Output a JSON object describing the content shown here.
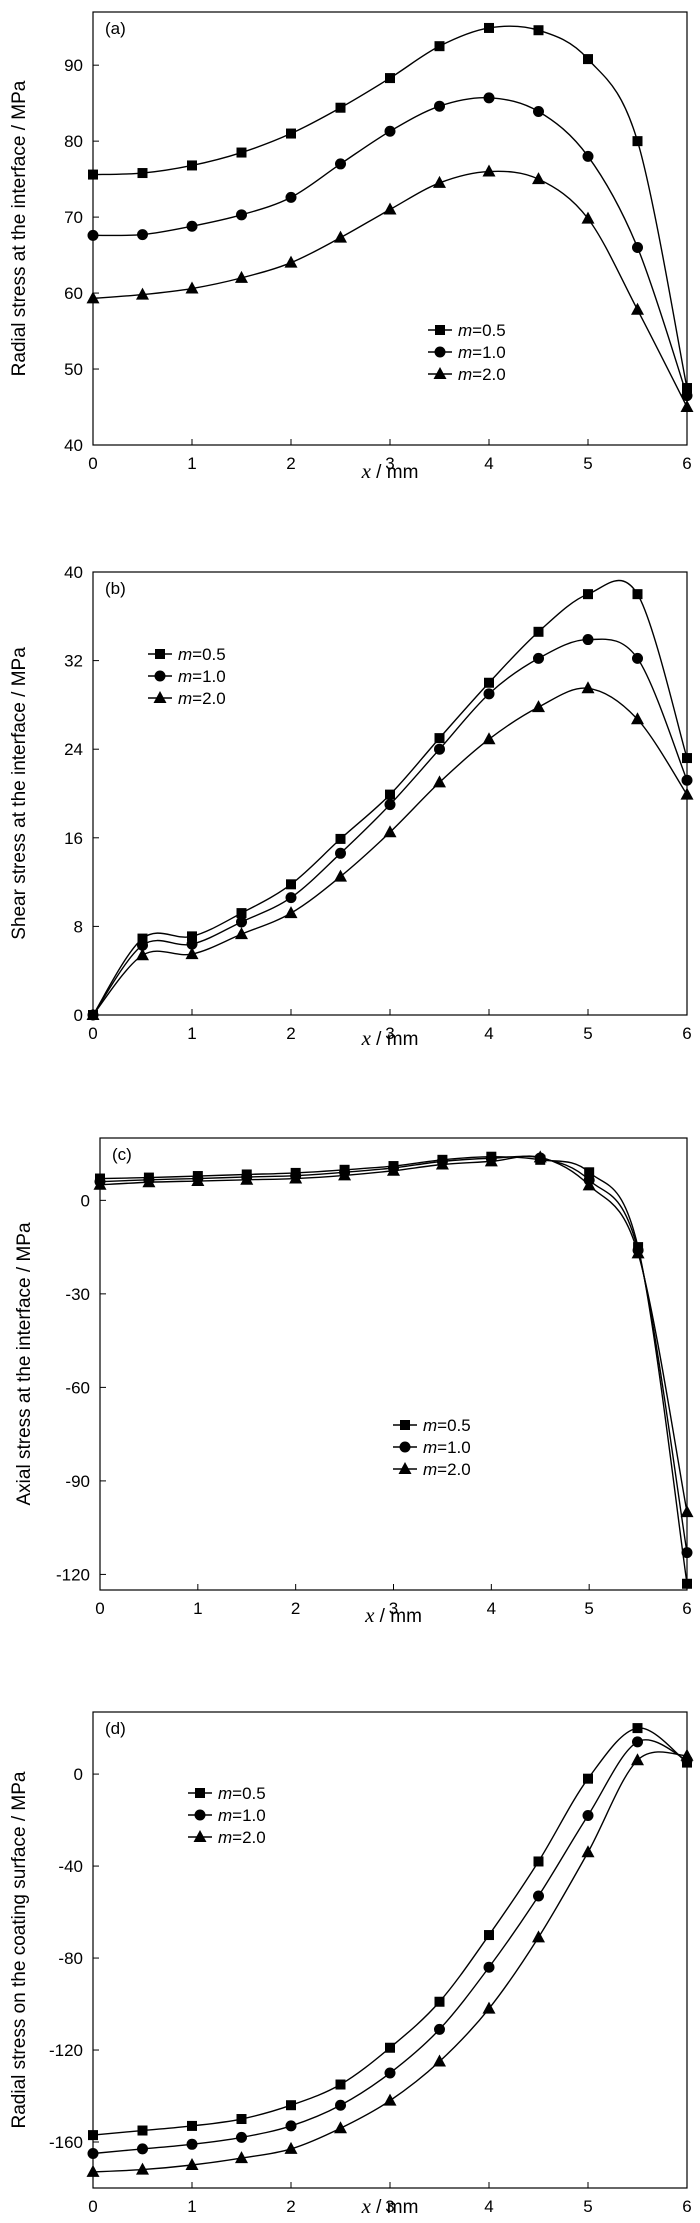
{
  "chart_data": [
    {
      "type": "line",
      "panel_label": "(a)",
      "xlabel_var": "x",
      "xlabel_unit": " / mm",
      "ylabel": "Radial stress at the interface / MPa",
      "xlim": [
        0,
        6
      ],
      "ylim": [
        40,
        97
      ],
      "xticks": [
        0,
        1,
        2,
        3,
        4,
        5,
        6
      ],
      "yticks": [
        40,
        50,
        60,
        70,
        80,
        90
      ],
      "legend_position": "lower-right",
      "x": [
        0,
        0.5,
        1,
        1.5,
        2,
        2.5,
        3,
        3.5,
        4,
        4.5,
        5,
        5.5,
        6
      ],
      "series": [
        {
          "name_var": "m",
          "name_val": "=0.5",
          "marker": "square",
          "values": [
            75.6,
            75.8,
            76.8,
            78.5,
            81.0,
            84.4,
            88.3,
            92.5,
            94.9,
            94.6,
            90.8,
            80.0,
            47.5
          ]
        },
        {
          "name_var": "m",
          "name_val": "=1.0",
          "marker": "circle",
          "values": [
            67.6,
            67.7,
            68.8,
            70.3,
            72.6,
            77.0,
            81.3,
            84.6,
            85.7,
            83.9,
            78.0,
            66.0,
            46.5
          ]
        },
        {
          "name_var": "m",
          "name_val": "=2.0",
          "marker": "triangle",
          "values": [
            59.3,
            59.8,
            60.6,
            62.0,
            64.0,
            67.3,
            71.0,
            74.5,
            76.0,
            75.0,
            69.8,
            57.8,
            45.0
          ]
        }
      ]
    },
    {
      "type": "line",
      "panel_label": "(b)",
      "xlabel_var": "x",
      "xlabel_unit": " / mm",
      "ylabel": "Shear stress at the interface / MPa",
      "xlim": [
        0,
        6
      ],
      "ylim": [
        0,
        40
      ],
      "xticks": [
        0,
        1,
        2,
        3,
        4,
        5,
        6
      ],
      "yticks": [
        0,
        8,
        16,
        24,
        32,
        40
      ],
      "legend_position": "upper-left",
      "x": [
        0,
        0.5,
        1,
        1.5,
        2,
        2.5,
        3,
        3.5,
        4,
        4.5,
        5,
        5.5,
        6
      ],
      "series": [
        {
          "name_var": "m",
          "name_val": "=0.5",
          "marker": "square",
          "values": [
            0,
            6.9,
            7.1,
            9.2,
            11.8,
            15.9,
            19.9,
            25.0,
            30.0,
            34.6,
            38.0,
            38.0,
            23.2
          ]
        },
        {
          "name_var": "m",
          "name_val": "=1.0",
          "marker": "circle",
          "values": [
            0,
            6.3,
            6.4,
            8.4,
            10.6,
            14.6,
            19.0,
            24.0,
            29.0,
            32.2,
            33.9,
            32.2,
            21.2
          ]
        },
        {
          "name_var": "m",
          "name_val": "=2.0",
          "marker": "triangle",
          "values": [
            0,
            5.4,
            5.5,
            7.3,
            9.2,
            12.5,
            16.5,
            21.0,
            24.9,
            27.8,
            29.5,
            26.7,
            19.9
          ]
        }
      ]
    },
    {
      "type": "line",
      "panel_label": "(c)",
      "xlabel_var": "x",
      "xlabel_unit": " / mm",
      "ylabel": "Axial stress at the interface / MPa",
      "xlim": [
        0,
        6
      ],
      "ylim": [
        -125,
        20
      ],
      "xticks": [
        0,
        1,
        2,
        3,
        4,
        5,
        6
      ],
      "yticks": [
        -120,
        -90,
        -60,
        -30,
        0
      ],
      "legend_position": "lower-center",
      "x": [
        0,
        0.5,
        1,
        1.5,
        2,
        2.5,
        3,
        3.5,
        4,
        4.5,
        5,
        5.5,
        6
      ],
      "series": [
        {
          "name_var": "m",
          "name_val": "=0.5",
          "marker": "square",
          "values": [
            7.0,
            7.3,
            7.8,
            8.3,
            8.8,
            9.8,
            11.0,
            13.0,
            14.0,
            13.0,
            9.0,
            -15.0,
            -123.0
          ]
        },
        {
          "name_var": "m",
          "name_val": "=1.0",
          "marker": "circle",
          "values": [
            6.0,
            6.6,
            7.0,
            7.5,
            7.9,
            9.0,
            10.4,
            12.5,
            13.5,
            13.6,
            6.5,
            -16.0,
            -113.0
          ]
        },
        {
          "name_var": "m",
          "name_val": "=2.0",
          "marker": "triangle",
          "values": [
            5.0,
            5.8,
            6.2,
            6.6,
            7.0,
            8.0,
            9.5,
            11.5,
            12.5,
            13.8,
            4.8,
            -17.0,
            -100.0
          ]
        }
      ]
    },
    {
      "type": "line",
      "panel_label": "(d)",
      "xlabel_var": "x",
      "xlabel_unit": " / mm",
      "ylabel": "Radial stress on the coating surface / MPa",
      "xlim": [
        0,
        6
      ],
      "ylim": [
        -180,
        27
      ],
      "xticks": [
        0,
        1,
        2,
        3,
        4,
        5,
        6
      ],
      "yticks": [
        -160,
        -120,
        -80,
        -40,
        0
      ],
      "legend_position": "upper-left",
      "x": [
        0,
        0.5,
        1,
        1.5,
        2,
        2.5,
        3,
        3.5,
        4,
        4.5,
        5,
        5.5,
        6
      ],
      "series": [
        {
          "name_var": "m",
          "name_val": "=0.5",
          "marker": "square",
          "values": [
            -157,
            -155,
            -153,
            -150,
            -144,
            -135,
            -119,
            -99,
            -70,
            -38,
            -2,
            20,
            5
          ]
        },
        {
          "name_var": "m",
          "name_val": "=1.0",
          "marker": "circle",
          "values": [
            -165,
            -163,
            -161,
            -158,
            -153,
            -144,
            -130,
            -111,
            -84,
            -53,
            -18,
            14,
            6
          ]
        },
        {
          "name_var": "m",
          "name_val": "=2.0",
          "marker": "triangle",
          "values": [
            -173,
            -172,
            -170,
            -167,
            -163,
            -154,
            -142,
            -125,
            -102,
            -71,
            -34,
            6,
            8
          ]
        }
      ]
    }
  ]
}
